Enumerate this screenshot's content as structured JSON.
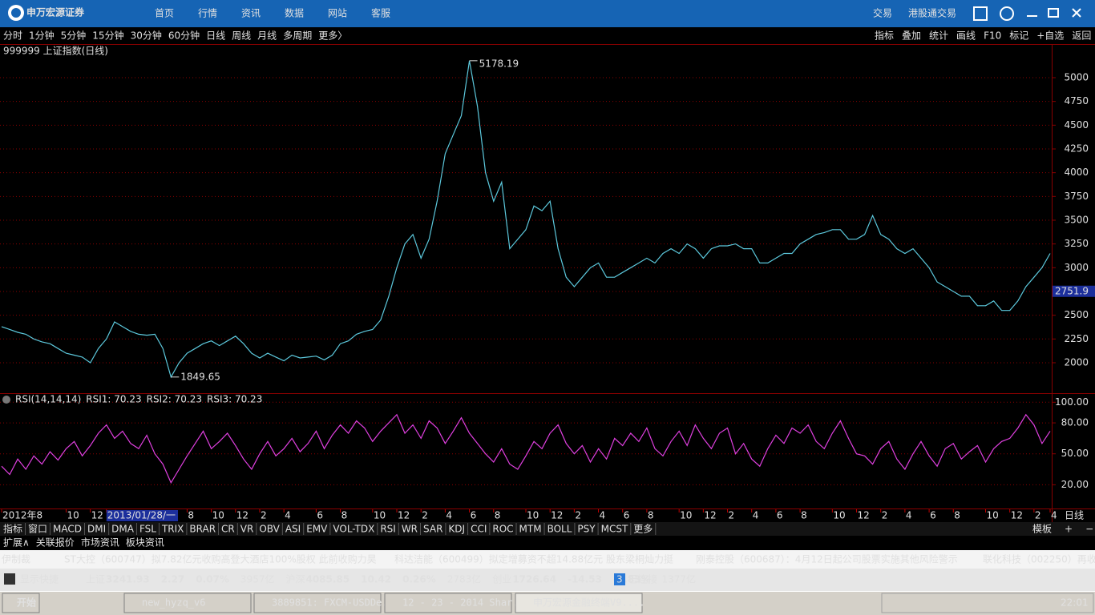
{
  "top_menu": {
    "logo": "申万宏源证券",
    "items": [
      "首页",
      "行情",
      "资讯",
      "数据",
      "网站",
      "客服"
    ],
    "right_items": [
      "交易",
      "港股通交易"
    ]
  },
  "period_bar": {
    "items": [
      "分时",
      "1分钟",
      "5分钟",
      "15分钟",
      "30分钟",
      "60分钟",
      "日线",
      "周线",
      "月线",
      "多周期",
      "更多〉"
    ],
    "active_index": 6,
    "right_items": [
      "指标",
      "叠加",
      "统计",
      "画线",
      "F10",
      "标记",
      "+自选",
      "返回"
    ]
  },
  "chart_data": [
    {
      "type": "line",
      "title": "999999 上证指数(日线)",
      "color": "#5cc8dc",
      "values": [
        2380,
        2350,
        2320,
        2300,
        2250,
        2220,
        2200,
        2150,
        2100,
        2080,
        2060,
        2000,
        2150,
        2250,
        2430,
        2380,
        2330,
        2300,
        2290,
        2300,
        2150,
        1849.65,
        2000,
        2100,
        2150,
        2200,
        2230,
        2180,
        2230,
        2280,
        2200,
        2100,
        2050,
        2100,
        2060,
        2020,
        2080,
        2050,
        2060,
        2070,
        2030,
        2080,
        2200,
        2230,
        2300,
        2330,
        2350,
        2450,
        2700,
        3000,
        3250,
        3350,
        3100,
        3300,
        3700,
        4200,
        4400,
        4600,
        5178.19,
        4700,
        4000,
        3700,
        3900,
        3200,
        3300,
        3400,
        3650,
        3600,
        3700,
        3200,
        2900,
        2800,
        2900,
        3000,
        3050,
        2900,
        2900,
        2950,
        3000,
        3050,
        3100,
        3050,
        3150,
        3200,
        3150,
        3250,
        3200,
        3100,
        3200,
        3230,
        3230,
        3250,
        3200,
        3200,
        3050,
        3050,
        3100,
        3150,
        3150,
        3250,
        3300,
        3350,
        3370,
        3400,
        3400,
        3300,
        3300,
        3350,
        3550,
        3350,
        3300,
        3200,
        3150,
        3200,
        3100,
        3000,
        2850,
        2800,
        2750,
        2700,
        2700,
        2600,
        2600,
        2650,
        2550,
        2550,
        2650,
        2800,
        2900,
        3000,
        3150
      ],
      "xlim": [
        0,
        130
      ],
      "xticks": [
        {
          "value": 0,
          "label": "2012年8"
        },
        {
          "value": 8,
          "label": "10"
        },
        {
          "value": 11,
          "label": "12"
        },
        {
          "value": 13,
          "label": "2013/01/28/一"
        },
        {
          "value": 23,
          "label": "8"
        },
        {
          "value": 26,
          "label": "10"
        },
        {
          "value": 29,
          "label": "12"
        },
        {
          "value": 32,
          "label": "2"
        },
        {
          "value": 35,
          "label": "4"
        },
        {
          "value": 39,
          "label": "6"
        },
        {
          "value": 42,
          "label": "8"
        },
        {
          "value": 46,
          "label": "10"
        },
        {
          "value": 49,
          "label": "12"
        },
        {
          "value": 52,
          "label": "2"
        },
        {
          "value": 55,
          "label": "4"
        },
        {
          "value": 58,
          "label": "6"
        },
        {
          "value": 61,
          "label": "8"
        },
        {
          "value": 65,
          "label": "10"
        },
        {
          "value": 68,
          "label": "12"
        },
        {
          "value": 71,
          "label": "2"
        },
        {
          "value": 74,
          "label": "4"
        },
        {
          "value": 77,
          "label": "6"
        },
        {
          "value": 80,
          "label": "8"
        },
        {
          "value": 84,
          "label": "10"
        },
        {
          "value": 87,
          "label": "12"
        },
        {
          "value": 90,
          "label": "2"
        },
        {
          "value": 93,
          "label": "4"
        },
        {
          "value": 96,
          "label": "6"
        },
        {
          "value": 99,
          "label": "8"
        },
        {
          "value": 103,
          "label": "10"
        },
        {
          "value": 106,
          "label": "12"
        },
        {
          "value": 109,
          "label": "2"
        },
        {
          "value": 112,
          "label": "4"
        },
        {
          "value": 115,
          "label": "6"
        },
        {
          "value": 118,
          "label": "8"
        },
        {
          "value": 122,
          "label": "10"
        },
        {
          "value": 125,
          "label": "12"
        },
        {
          "value": 128,
          "label": "2"
        },
        {
          "value": 130,
          "label": "4"
        }
      ],
      "cursor_xtick": 3,
      "period_label": "日线",
      "ylim": [
        1688,
        5337
      ],
      "yticks": [
        2000,
        2250,
        2500,
        2750,
        3000,
        3250,
        3500,
        3750,
        4000,
        4250,
        4500,
        4750,
        5000
      ],
      "grid": true,
      "annotations": [
        "5178.19",
        "1849.65"
      ],
      "cursor_value": {
        "value": 2751.9,
        "label": "2751.9"
      }
    },
    {
      "type": "line",
      "title": "RSI(14,14,14)",
      "legend": [
        {
          "label": "RSI1: 70.23",
          "color": "#ffffff"
        },
        {
          "label": "RSI2: 70.23",
          "color": "#ffff00"
        },
        {
          "label": "RSI3: 70.23",
          "color": "#e040e0"
        }
      ],
      "color": "#e040e0",
      "values": [
        38,
        30,
        45,
        35,
        48,
        40,
        52,
        44,
        55,
        62,
        48,
        58,
        70,
        78,
        65,
        72,
        60,
        55,
        68,
        50,
        40,
        22,
        35,
        48,
        60,
        72,
        55,
        62,
        70,
        58,
        45,
        35,
        50,
        62,
        48,
        55,
        65,
        52,
        60,
        72,
        55,
        68,
        78,
        70,
        82,
        75,
        62,
        72,
        80,
        88,
        70,
        78,
        65,
        82,
        75,
        60,
        72,
        85,
        70,
        60,
        50,
        42,
        55,
        40,
        35,
        48,
        62,
        55,
        70,
        78,
        60,
        50,
        58,
        42,
        55,
        45,
        65,
        58,
        70,
        62,
        75,
        55,
        48,
        62,
        72,
        58,
        78,
        65,
        55,
        70,
        75,
        50,
        60,
        45,
        38,
        55,
        68,
        60,
        75,
        70,
        78,
        62,
        55,
        70,
        82,
        65,
        50,
        48,
        40,
        55,
        62,
        45,
        35,
        50,
        62,
        48,
        38,
        55,
        60,
        45,
        52,
        58,
        42,
        55,
        62,
        65,
        75,
        88,
        78,
        60,
        72
      ],
      "xlim": [
        0,
        130
      ],
      "ylim": [
        -3,
        108
      ],
      "yticks": [
        {
          "value": 100,
          "label": "100.00"
        },
        {
          "value": 80,
          "label": "80.00"
        },
        {
          "value": 50,
          "label": "50.00"
        },
        {
          "value": 20,
          "label": "20.00"
        }
      ],
      "grid": true
    }
  ],
  "indicator_tabs": {
    "items": [
      "指标",
      "窗口",
      "MACD",
      "DMI",
      "DMA",
      "FSL",
      "TRIX",
      "BRAR",
      "CR",
      "VR",
      "OBV",
      "ASI",
      "EMV",
      "VOL-TDX",
      "RSI",
      "WR",
      "SAR",
      "KDJ",
      "CCI",
      "ROC",
      "MTM",
      "BOLL",
      "PSY",
      "MCST",
      "更多"
    ],
    "active_index": 14,
    "right_items": [
      "模板",
      "+",
      "−"
    ]
  },
  "info_tabs": [
    "扩展∧",
    "关联报价",
    "市场资讯",
    "板块资讯"
  ],
  "news": [
    "伊制裁",
    "ST大控（600747）拟7.82亿元收购高登大酒店100%股权  此前收购力昊",
    "科达洁能（600499）拟定增募资不超14.88亿元  股东梁桐灿力挺",
    "刚泰控股（600687）：4月12日起公司股票实施其他风险警示",
    "联化科技（002250）再收"
  ],
  "status": {
    "shortcut": "显示快捷",
    "quotes": [
      {
        "name": "上证",
        "price": "3241.93",
        "change": "2.27",
        "pct": "0.07%",
        "amount": "3957亿"
      },
      {
        "name": "沪深",
        "price": "4085.85",
        "change": "10.42",
        "pct": "0.26%",
        "amount": "2783亿"
      },
      {
        "name": "创业",
        "price": "1726.64",
        "change": "-14.53",
        "pct": "-0.83%",
        "amount": "1377亿"
      }
    ],
    "connections": "3",
    "connection_text": "已连接"
  },
  "taskbar": {
    "start": "开始",
    "windows": [
      "new_hyzq_v6",
      "3889851: FXCM-USDDe...",
      "12 - 23 - 2014 Shar...",
      "申万宏源金融终端V9...."
    ],
    "clock": "22:01"
  }
}
